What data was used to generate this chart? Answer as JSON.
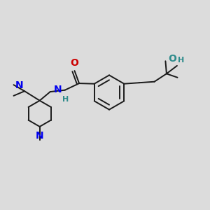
{
  "bg_color": "#dcdcdc",
  "bond_color": "#1a1a1a",
  "blue_color": "#0000ee",
  "red_color": "#cc0000",
  "teal_color": "#2e8b8b",
  "figsize": [
    3.0,
    3.0
  ],
  "dpi": 100,
  "xlim": [
    0,
    10
  ],
  "ylim": [
    0,
    10
  ]
}
